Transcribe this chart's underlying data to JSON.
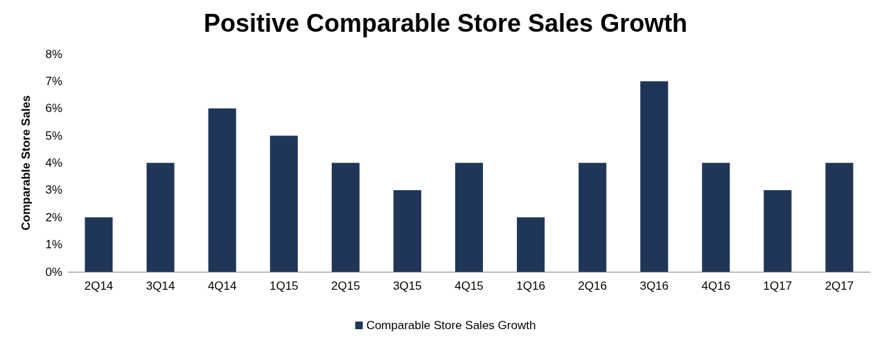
{
  "chart_data": {
    "type": "bar",
    "title": "Positive Comparable Store Sales Growth",
    "ylabel": "Comparable Store Sales",
    "categories": [
      "2Q14",
      "3Q14",
      "4Q14",
      "1Q15",
      "2Q15",
      "3Q15",
      "4Q15",
      "1Q16",
      "2Q16",
      "3Q16",
      "4Q16",
      "1Q17",
      "2Q17"
    ],
    "series": [
      {
        "name": "Comparable Store Sales Growth",
        "color": "#1f3658",
        "values": [
          2,
          4,
          6,
          5,
          4,
          3,
          4,
          2,
          4,
          7,
          4,
          3,
          4
        ]
      }
    ],
    "ylim": [
      0,
      8
    ],
    "yticks": [
      {
        "value": 0,
        "label": "0%"
      },
      {
        "value": 1,
        "label": "1%"
      },
      {
        "value": 2,
        "label": "2%"
      },
      {
        "value": 3,
        "label": "3%"
      },
      {
        "value": 4,
        "label": "4%"
      },
      {
        "value": 5,
        "label": "5%"
      },
      {
        "value": 6,
        "label": "6%"
      },
      {
        "value": 7,
        "label": "7%"
      },
      {
        "value": 8,
        "label": "8%"
      }
    ],
    "grid": false,
    "legend": "bottom"
  }
}
